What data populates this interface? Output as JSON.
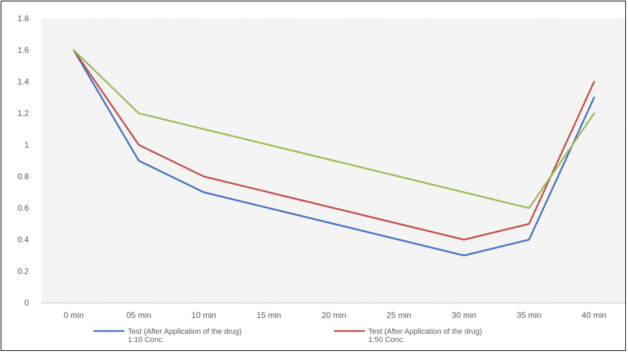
{
  "chart_data": {
    "type": "line",
    "title": "",
    "xlabel": "",
    "ylabel": "",
    "categories": [
      "0 min",
      "05 min",
      "10 min",
      "15 min",
      "20 min",
      "25 min",
      "30 min",
      "35 min",
      "40 min"
    ],
    "ylim": [
      0,
      1.8
    ],
    "yticks": [
      0,
      0.2,
      0.4,
      0.6,
      0.8,
      1,
      1.2,
      1.4,
      1.6,
      1.8
    ],
    "ytick_labels": [
      "0",
      "0.2",
      "0.4",
      "0.6",
      "0.8",
      "1",
      "1.2",
      "1.4",
      "1.6",
      "1.8"
    ],
    "grid": false,
    "plot_background": "diagonal-hatch",
    "legend_position": "bottom",
    "series": [
      {
        "name_lines": [
          "Test (After Application of the drug)",
          "1:10 Conc."
        ],
        "color": "#4472C4",
        "values": [
          1.6,
          0.9,
          0.7,
          0.6,
          0.5,
          0.4,
          0.3,
          0.4,
          1.3
        ]
      },
      {
        "name_lines": [
          "Test (After Application of the drug)",
          "1:50 Conc."
        ],
        "color": "#C0504D",
        "values": [
          1.6,
          1.0,
          0.8,
          0.7,
          0.6,
          0.5,
          0.4,
          0.5,
          1.4
        ]
      },
      {
        "color": "#9BBB59",
        "values": [
          1.6,
          1.2,
          1.1,
          1.0,
          0.9,
          0.8,
          0.7,
          0.6,
          1.2
        ]
      }
    ]
  }
}
